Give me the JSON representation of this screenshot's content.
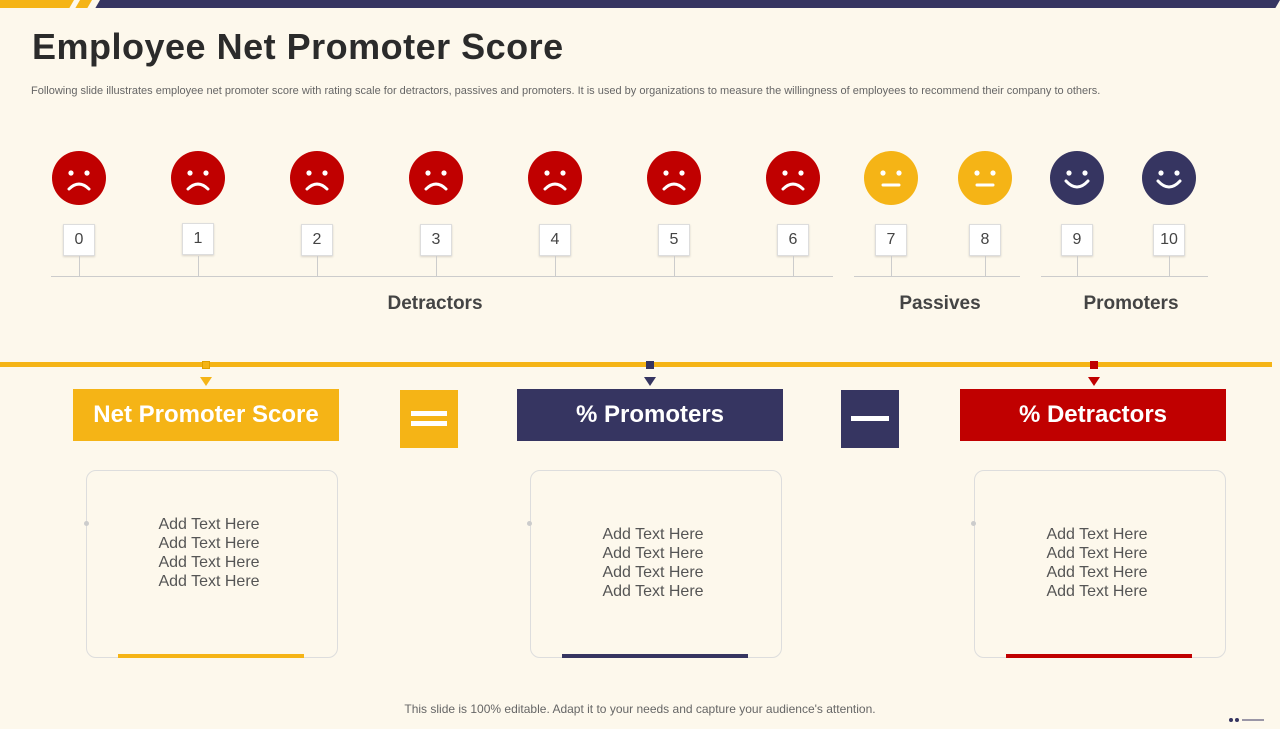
{
  "title": "Employee Net Promoter Score",
  "subtitle": "Following slide illustrates employee net promoter score with rating scale for detractors, passives and promoters. It is used by organizations to measure the willingness of employees to recommend  their company to others.",
  "scale": [
    "0",
    "1",
    "2",
    "3",
    "4",
    "5",
    "6",
    "7",
    "8",
    "9",
    "10"
  ],
  "groups": {
    "detractors": "Detractors",
    "passives": "Passives",
    "promoters": "Promoters"
  },
  "formula": {
    "nps": "Net Promoter Score",
    "promoters": "%  Promoters",
    "detractors": "% Detractors"
  },
  "cards": {
    "nps": [
      "Add Text Here",
      "Add Text Here",
      "Add Text Here",
      "Add Text Here"
    ],
    "promoters": [
      "Add Text Here",
      "Add Text Here",
      "Add Text Here",
      "Add Text Here"
    ],
    "detractors": [
      "Add Text Here",
      "Add Text Here",
      "Add Text Here",
      "Add Text Here"
    ]
  },
  "footer": "This slide is 100% editable. Adapt it to your needs and capture your audience's attention.",
  "colors": {
    "red": "#c00000",
    "yellow": "#f5b416",
    "navy": "#363561"
  },
  "icons": {
    "sad": "sad-face-icon",
    "neutral": "neutral-face-icon",
    "happy": "happy-face-icon",
    "equals": "equals-icon",
    "minus": "minus-icon"
  }
}
